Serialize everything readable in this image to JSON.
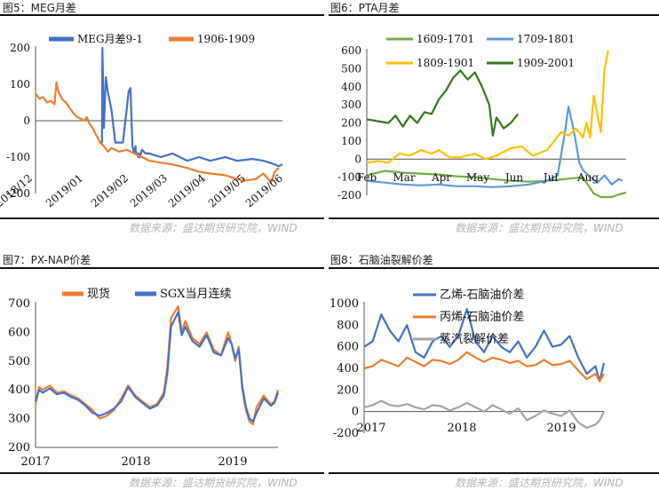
{
  "panels": [
    {
      "title": "图5：MEG月差",
      "source": "数据来源：盛达期货研究院，WIND"
    },
    {
      "title": "图6：PTA月差",
      "source": "数据来源：盛达期货研究院，WIND"
    },
    {
      "title": "图7：PX-NAP价差",
      "source": "数据来源：盛达期货研究院，WIND"
    },
    {
      "title": "图8：石脑油裂解价差",
      "source": "数据来源：盛达期货研究院，WIND"
    }
  ],
  "chart_data": [
    {
      "type": "line",
      "ylim": [
        -200,
        200
      ],
      "yticks": [
        "200",
        "100",
        "0",
        "-100",
        "-200"
      ],
      "xticks": [
        "2018/12",
        "2019/01",
        "2019/02",
        "2019/03",
        "2019/04",
        "2019/05",
        "2019/06"
      ],
      "series": [
        {
          "name": "MEG月差9-1",
          "color": "#4472c4",
          "t": [
            1.7,
            1.75,
            1.76,
            1.8,
            1.85,
            1.9,
            2.0,
            2.1,
            2.3,
            2.4,
            2.45,
            2.5,
            2.55,
            2.6,
            2.63,
            2.65,
            2.68,
            2.7,
            2.72,
            2.75,
            2.8,
            2.9,
            3.0,
            3.3,
            3.6,
            4.0,
            4.3,
            4.6,
            5.0,
            5.3,
            5.7,
            6.0,
            6.3,
            6.4,
            6.5
          ],
          "v": [
            -60,
            -60,
            200,
            -20,
            120,
            80,
            30,
            -60,
            -60,
            30,
            80,
            90,
            -70,
            -90,
            -70,
            -90,
            -90,
            -100,
            -90,
            -100,
            -80,
            -90,
            -90,
            -100,
            -90,
            -110,
            -100,
            -110,
            -100,
            -110,
            -105,
            -110,
            -120,
            -125,
            -120
          ]
        },
        {
          "name": "1906-1909",
          "color": "#ed7d31",
          "t": [
            0,
            0.1,
            0.2,
            0.3,
            0.4,
            0.5,
            0.55,
            0.6,
            0.7,
            0.8,
            0.9,
            1.0,
            1.1,
            1.2,
            1.3,
            1.35,
            1.4,
            1.5,
            1.6,
            1.7,
            1.8,
            1.9,
            2.0,
            2.2,
            2.4,
            2.6,
            2.8,
            3.0,
            3.3,
            3.6,
            4.0,
            4.3,
            4.6,
            5.0,
            5.3,
            5.5,
            5.8,
            6.0,
            6.2,
            6.3,
            6.4
          ],
          "v": [
            75,
            60,
            65,
            50,
            55,
            45,
            105,
            80,
            60,
            50,
            35,
            20,
            10,
            5,
            0,
            10,
            -5,
            -20,
            -40,
            -60,
            -70,
            -85,
            -75,
            -85,
            -80,
            -90,
            -100,
            -110,
            -115,
            -120,
            -130,
            -140,
            -145,
            -150,
            -160,
            -165,
            -160,
            -145,
            -170,
            -140,
            -130
          ]
        }
      ]
    },
    {
      "type": "line",
      "ylim": [
        -200,
        600
      ],
      "yticks": [
        "600",
        "500",
        "400",
        "300",
        "200",
        "100",
        "0",
        "-100",
        "-200"
      ],
      "xticks": [
        "Feb",
        "Mar",
        "Apr",
        "May",
        "Jun",
        "Jul",
        "Aug"
      ],
      "series": [
        {
          "name": "1609-1701",
          "color": "#70ad47",
          "t": [
            0,
            0.5,
            1.0,
            1.5,
            2.0,
            2.5,
            3.0,
            3.5,
            4.0,
            4.5,
            5.0,
            5.5,
            6.0,
            6.3,
            6.5,
            6.8,
            7.0,
            7.2
          ],
          "v": [
            -90,
            -65,
            -75,
            -80,
            -85,
            -95,
            -100,
            -110,
            -120,
            -125,
            -120,
            -110,
            -100,
            -190,
            -210,
            -210,
            -195,
            -185
          ]
        },
        {
          "name": "1709-1801",
          "color": "#5b9bd5",
          "t": [
            0,
            0.5,
            1.0,
            1.5,
            2.0,
            2.5,
            3.0,
            3.5,
            4.0,
            4.5,
            5.0,
            5.3,
            5.5,
            5.6,
            5.7,
            5.8,
            5.9,
            6.0,
            6.2,
            6.4,
            6.6,
            6.8,
            7.0,
            7.1
          ],
          "v": [
            -120,
            -130,
            -140,
            -145,
            -140,
            -150,
            -150,
            -155,
            -150,
            -140,
            -120,
            -90,
            150,
            290,
            200,
            100,
            -20,
            -60,
            -100,
            -130,
            -90,
            -140,
            -110,
            -120
          ]
        },
        {
          "name": "1809-1901",
          "color": "#ffc000",
          "t": [
            0,
            0.3,
            0.6,
            0.9,
            1.2,
            1.5,
            1.8,
            2.0,
            2.3,
            2.6,
            3.0,
            3.3,
            3.6,
            4.0,
            4.3,
            4.6,
            5.0,
            5.2,
            5.4,
            5.6,
            5.8,
            6.0,
            6.1,
            6.2,
            6.3,
            6.5,
            6.6,
            6.7
          ],
          "v": [
            -20,
            -10,
            -20,
            30,
            20,
            50,
            30,
            50,
            10,
            10,
            30,
            0,
            20,
            60,
            70,
            20,
            50,
            100,
            150,
            130,
            170,
            120,
            200,
            120,
            350,
            150,
            500,
            600
          ]
        },
        {
          "name": "1909-2001",
          "color": "#38761d",
          "t": [
            0,
            0.3,
            0.6,
            0.8,
            1.0,
            1.2,
            1.4,
            1.6,
            1.8,
            2.0,
            2.2,
            2.4,
            2.6,
            2.8,
            3.0,
            3.2,
            3.4,
            3.5,
            3.6,
            3.8,
            4.0,
            4.2
          ],
          "v": [
            220,
            210,
            200,
            240,
            180,
            240,
            200,
            260,
            250,
            330,
            380,
            450,
            490,
            440,
            480,
            400,
            300,
            130,
            230,
            170,
            200,
            250
          ]
        }
      ]
    },
    {
      "type": "line",
      "ylim": [
        200,
        700
      ],
      "yticks": [
        "700",
        "600",
        "500",
        "400",
        "300",
        "200"
      ],
      "xticks": [
        "2017",
        "2018",
        "2019"
      ],
      "series": [
        {
          "name": "现货",
          "color": "#ed7d31",
          "t": [
            0,
            0.05,
            0.1,
            0.2,
            0.3,
            0.4,
            0.5,
            0.6,
            0.7,
            0.8,
            0.9,
            1.0,
            1.1,
            1.2,
            1.3,
            1.4,
            1.5,
            1.6,
            1.7,
            1.8,
            1.85,
            1.9,
            2.0,
            2.05,
            2.1,
            2.2,
            2.3,
            2.4,
            2.5,
            2.6,
            2.7,
            2.75,
            2.8,
            2.85,
            2.9,
            2.95,
            3.0,
            3.05,
            3.1,
            3.2,
            3.3,
            3.35,
            3.4
          ],
          "v": [
            350,
            410,
            400,
            415,
            390,
            395,
            380,
            370,
            350,
            330,
            300,
            310,
            330,
            370,
            415,
            380,
            360,
            340,
            350,
            390,
            480,
            650,
            690,
            600,
            640,
            580,
            560,
            600,
            540,
            520,
            600,
            560,
            500,
            550,
            400,
            330,
            290,
            280,
            340,
            380,
            350,
            360,
            400
          ]
        },
        {
          "name": "SGX当月连续",
          "color": "#4472c4",
          "t": [
            0,
            0.05,
            0.1,
            0.2,
            0.3,
            0.4,
            0.5,
            0.6,
            0.7,
            0.8,
            0.9,
            1.0,
            1.1,
            1.2,
            1.3,
            1.4,
            1.5,
            1.6,
            1.7,
            1.8,
            1.85,
            1.9,
            2.0,
            2.05,
            2.1,
            2.2,
            2.3,
            2.4,
            2.5,
            2.6,
            2.7,
            2.75,
            2.8,
            2.85,
            2.9,
            2.95,
            3.0,
            3.05,
            3.1,
            3.2,
            3.3,
            3.35,
            3.4
          ],
          "v": [
            360,
            400,
            390,
            405,
            385,
            390,
            375,
            365,
            345,
            320,
            310,
            320,
            335,
            360,
            410,
            375,
            355,
            335,
            345,
            380,
            460,
            620,
            670,
            590,
            620,
            570,
            550,
            590,
            530,
            520,
            580,
            560,
            510,
            540,
            410,
            340,
            300,
            290,
            320,
            370,
            345,
            355,
            390
          ]
        }
      ]
    },
    {
      "type": "line",
      "ylim": [
        -200,
        1000
      ],
      "yticks": [
        "1000",
        "800",
        "600",
        "400",
        "200",
        "0",
        "-200"
      ],
      "xticks": [
        "2017",
        "2018",
        "2019"
      ],
      "series": [
        {
          "name": "乙烯-石脑油价差",
          "color": "#4472c4",
          "t": [
            0,
            0.1,
            0.2,
            0.3,
            0.4,
            0.5,
            0.6,
            0.7,
            0.8,
            0.9,
            1.0,
            1.1,
            1.2,
            1.3,
            1.4,
            1.5,
            1.6,
            1.7,
            1.8,
            1.9,
            2.0,
            2.1,
            2.2,
            2.3,
            2.4,
            2.5,
            2.6,
            2.7,
            2.75,
            2.8
          ],
          "v": [
            600,
            650,
            900,
            750,
            650,
            800,
            550,
            500,
            650,
            700,
            600,
            700,
            950,
            650,
            550,
            700,
            600,
            550,
            650,
            500,
            600,
            750,
            600,
            620,
            700,
            500,
            350,
            420,
            280,
            450
          ]
        },
        {
          "name": "丙烯-石脑油价差",
          "color": "#ed7d31",
          "t": [
            0,
            0.1,
            0.2,
            0.3,
            0.4,
            0.5,
            0.6,
            0.7,
            0.8,
            0.9,
            1.0,
            1.1,
            1.2,
            1.3,
            1.4,
            1.5,
            1.6,
            1.7,
            1.8,
            1.9,
            2.0,
            2.1,
            2.2,
            2.3,
            2.4,
            2.5,
            2.6,
            2.7,
            2.75,
            2.8
          ],
          "v": [
            400,
            420,
            480,
            450,
            420,
            500,
            460,
            420,
            480,
            470,
            440,
            480,
            550,
            500,
            460,
            500,
            480,
            450,
            470,
            420,
            430,
            480,
            430,
            440,
            470,
            380,
            300,
            350,
            280,
            350
          ]
        },
        {
          "name": "蒸汽裂解价差",
          "color": "#a5a5a5",
          "t": [
            0,
            0.1,
            0.2,
            0.3,
            0.4,
            0.5,
            0.6,
            0.7,
            0.8,
            0.9,
            1.0,
            1.1,
            1.2,
            1.3,
            1.4,
            1.5,
            1.6,
            1.7,
            1.8,
            1.9,
            2.0,
            2.1,
            2.2,
            2.3,
            2.4,
            2.5,
            2.6,
            2.7,
            2.75,
            2.8
          ],
          "v": [
            40,
            60,
            100,
            60,
            50,
            70,
            40,
            20,
            60,
            50,
            10,
            40,
            80,
            40,
            0,
            60,
            20,
            -20,
            30,
            -80,
            -40,
            10,
            -20,
            -40,
            10,
            -100,
            -150,
            -120,
            -80,
            0
          ]
        }
      ]
    }
  ]
}
